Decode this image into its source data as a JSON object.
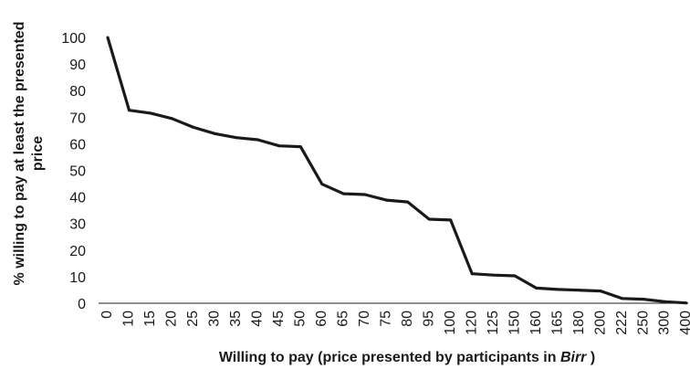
{
  "chart_data": {
    "type": "line",
    "xlabel": "Willing to pay (price presented by participants in ",
    "xlabel_italic": "Birr",
    "xlabel_suffix": " )",
    "ylabel_line1": "%  willing to pay at least the presented",
    "ylabel_line2": "price",
    "ylim": [
      0,
      100
    ],
    "yticks": [
      0,
      10,
      20,
      30,
      40,
      50,
      60,
      70,
      80,
      90,
      100
    ],
    "grid": false,
    "categories": [
      "0",
      "10",
      "15",
      "20",
      "25",
      "30",
      "35",
      "40",
      "45",
      "50",
      "60",
      "65",
      "70",
      "75",
      "80",
      "95",
      "100",
      "120",
      "125",
      "150",
      "160",
      "165",
      "180",
      "200",
      "222",
      "250",
      "300",
      "400"
    ],
    "values": [
      100,
      72.6,
      71.5,
      69.5,
      66.2,
      63.8,
      62.3,
      61.5,
      59.2,
      58.9,
      44.8,
      41.2,
      40.9,
      38.8,
      38.1,
      31.6,
      31.3,
      11.1,
      10.6,
      10.3,
      5.7,
      5.2,
      4.9,
      4.6,
      1.8,
      1.5,
      0.6,
      0.1
    ],
    "color": "#1a1a1a"
  }
}
